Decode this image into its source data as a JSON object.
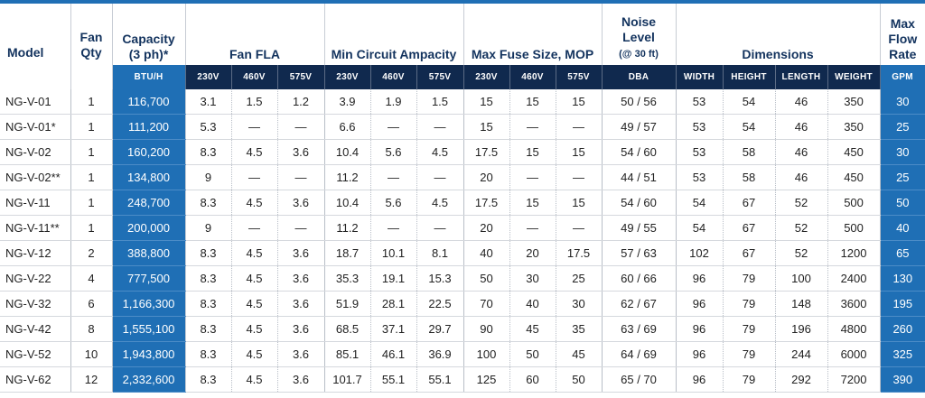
{
  "headers": {
    "model": "Model",
    "fan_qty": [
      "Fan",
      "Qty"
    ],
    "capacity": [
      "Capacity",
      "(3 ph)*"
    ],
    "fan_fla": "Fan FLA",
    "min_circuit": "Min Circuit Ampacity",
    "max_fuse": "Max Fuse Size, MOP",
    "noise": [
      "Noise",
      "Level",
      "(@ 30 ft)"
    ],
    "dimensions": "Dimensions",
    "max_flow": [
      "Max",
      "Flow",
      "Rate"
    ]
  },
  "subheaders": [
    "BTU/H",
    "230V",
    "460V",
    "575V",
    "230V",
    "460V",
    "575V",
    "230V",
    "460V",
    "575V",
    "DBA",
    "WIDTH",
    "HEIGHT",
    "LENGTH",
    "WEIGHT",
    "GPM"
  ],
  "rows": [
    [
      "NG-V-01",
      "1",
      "116,700",
      "3.1",
      "1.5",
      "1.2",
      "3.9",
      "1.9",
      "1.5",
      "15",
      "15",
      "15",
      "50 / 56",
      "53",
      "54",
      "46",
      "350",
      "30"
    ],
    [
      "NG-V-01*",
      "1",
      "111,200",
      "5.3",
      "—",
      "—",
      "6.6",
      "—",
      "—",
      "15",
      "—",
      "—",
      "49 / 57",
      "53",
      "54",
      "46",
      "350",
      "25"
    ],
    [
      "NG-V-02",
      "1",
      "160,200",
      "8.3",
      "4.5",
      "3.6",
      "10.4",
      "5.6",
      "4.5",
      "17.5",
      "15",
      "15",
      "54 / 60",
      "53",
      "58",
      "46",
      "450",
      "30"
    ],
    [
      "NG-V-02**",
      "1",
      "134,800",
      "9",
      "—",
      "—",
      "11.2",
      "—",
      "—",
      "20",
      "—",
      "—",
      "44 / 51",
      "53",
      "58",
      "46",
      "450",
      "25"
    ],
    [
      "NG-V-11",
      "1",
      "248,700",
      "8.3",
      "4.5",
      "3.6",
      "10.4",
      "5.6",
      "4.5",
      "17.5",
      "15",
      "15",
      "54 / 60",
      "54",
      "67",
      "52",
      "500",
      "50"
    ],
    [
      "NG-V-11**",
      "1",
      "200,000",
      "9",
      "—",
      "—",
      "11.2",
      "—",
      "—",
      "20",
      "—",
      "—",
      "49 / 55",
      "54",
      "67",
      "52",
      "500",
      "40"
    ],
    [
      "NG-V-12",
      "2",
      "388,800",
      "8.3",
      "4.5",
      "3.6",
      "18.7",
      "10.1",
      "8.1",
      "40",
      "20",
      "17.5",
      "57 / 63",
      "102",
      "67",
      "52",
      "1200",
      "65"
    ],
    [
      "NG-V-22",
      "4",
      "777,500",
      "8.3",
      "4.5",
      "3.6",
      "35.3",
      "19.1",
      "15.3",
      "50",
      "30",
      "25",
      "60 / 66",
      "96",
      "79",
      "100",
      "2400",
      "130"
    ],
    [
      "NG-V-32",
      "6",
      "1,166,300",
      "8.3",
      "4.5",
      "3.6",
      "51.9",
      "28.1",
      "22.5",
      "70",
      "40",
      "30",
      "62 / 67",
      "96",
      "79",
      "148",
      "3600",
      "195"
    ],
    [
      "NG-V-42",
      "8",
      "1,555,100",
      "8.3",
      "4.5",
      "3.6",
      "68.5",
      "37.1",
      "29.7",
      "90",
      "45",
      "35",
      "63 / 69",
      "96",
      "79",
      "196",
      "4800",
      "260"
    ],
    [
      "NG-V-52",
      "10",
      "1,943,800",
      "8.3",
      "4.5",
      "3.6",
      "85.1",
      "46.1",
      "36.9",
      "100",
      "50",
      "45",
      "64 / 69",
      "96",
      "79",
      "244",
      "6000",
      "325"
    ],
    [
      "NG-V-62",
      "12",
      "2,332,600",
      "8.3",
      "4.5",
      "3.6",
      "101.7",
      "55.1",
      "55.1",
      "125",
      "60",
      "50",
      "65 / 70",
      "96",
      "79",
      "292",
      "7200",
      "390"
    ]
  ],
  "colors": {
    "accent_blue": "#1f6fb5",
    "header_navy": "#10294e",
    "header_text": "#13335e"
  }
}
